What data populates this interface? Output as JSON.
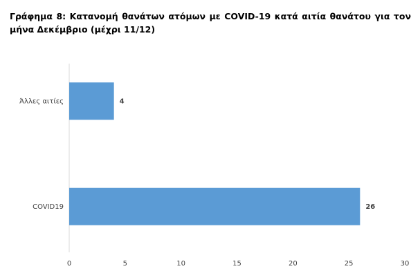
{
  "chart_data": {
    "type": "bar",
    "orientation": "horizontal",
    "title": "Γράφημα 8: Κατανομή θανάτων ατόμων με COVID-19 κατά αιτία θανάτου για τον μήνα Δεκέμβριο (μέχρι 11/12)",
    "categories": [
      "Άλλες αιτίες",
      "COVID19"
    ],
    "values": [
      4,
      26
    ],
    "color": "#5b9bd5",
    "xlim": [
      0,
      30
    ],
    "xticks": [
      0,
      5,
      10,
      15,
      20,
      25,
      30
    ],
    "grid": false
  }
}
